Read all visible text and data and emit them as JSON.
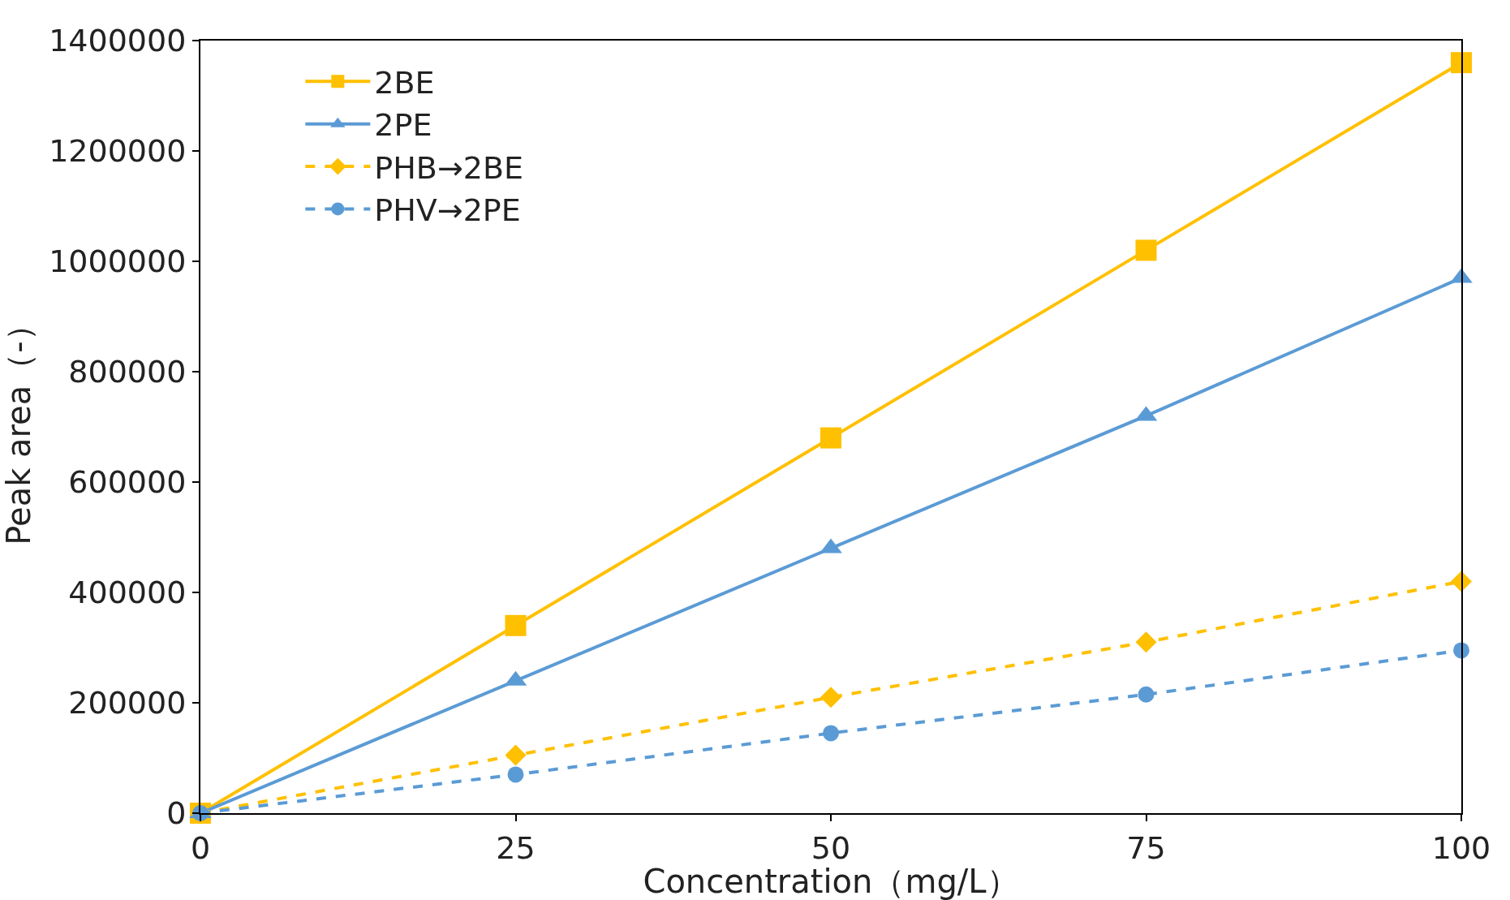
{
  "chart_data": {
    "type": "line",
    "xlabel": "Concentration（mg/L）",
    "ylabel": "Peak area（-）",
    "x": [
      0,
      25,
      50,
      75,
      100
    ],
    "series": [
      {
        "name": "2BE",
        "color": "#ffc000",
        "marker": "square",
        "line_style": "solid",
        "values": [
          0,
          340000,
          680000,
          1020000,
          1360000
        ]
      },
      {
        "name": "2PE",
        "color": "#5b9bd5",
        "marker": "triangle",
        "line_style": "solid",
        "values": [
          0,
          240000,
          480000,
          720000,
          970000
        ]
      },
      {
        "name": "PHB→2BE",
        "color": "#ffc000",
        "marker": "diamond",
        "line_style": "dashed",
        "values": [
          0,
          105000,
          210000,
          310000,
          420000
        ]
      },
      {
        "name": "PHV→2PE",
        "color": "#5b9bd5",
        "marker": "circle",
        "line_style": "dashed",
        "values": [
          0,
          70000,
          145000,
          215000,
          295000
        ]
      }
    ],
    "xlim": [
      0,
      100
    ],
    "xticks": [
      0,
      25,
      50,
      75,
      100
    ],
    "ylim": [
      0,
      1400000
    ],
    "yticks": [
      0,
      200000,
      400000,
      600000,
      800000,
      1000000,
      1200000,
      1400000
    ],
    "legend": "top left"
  }
}
